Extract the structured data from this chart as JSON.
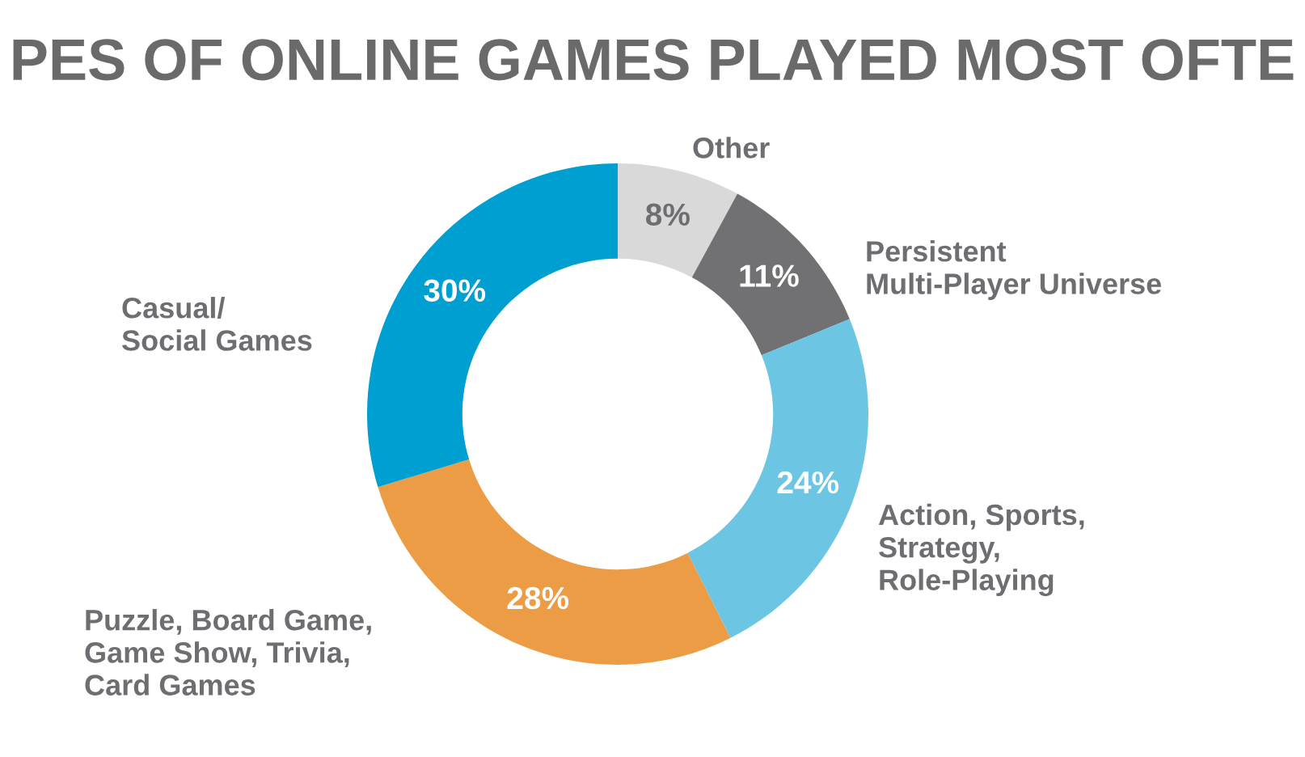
{
  "chart_data": {
    "type": "donut",
    "title": "PES OF ONLINE GAMES PLAYED MOST OFTE",
    "categories": [
      "Other",
      "Persistent\nMulti-Player Universe",
      "Action, Sports,\nStrategy,\nRole-Playing",
      "Puzzle, Board Game,\nGame Show, Trivia,\nCard Games",
      "Casual/\nSocial Games"
    ],
    "values": [
      8,
      11,
      24,
      28,
      30
    ],
    "colors": [
      "#d9d9d9",
      "#717073",
      "#6cc5e3",
      "#eb9c45",
      "#009fd1"
    ],
    "value_labels": [
      "8%",
      "11%",
      "24%",
      "28%",
      "30%"
    ]
  }
}
